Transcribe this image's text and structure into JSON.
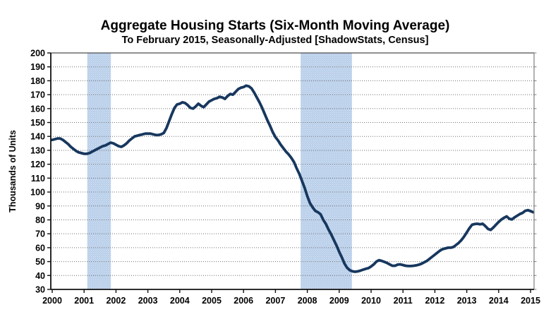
{
  "chart_data": {
    "type": "line",
    "title": "Aggregate Housing Starts (Six-Month Moving Average)",
    "subtitle": "To February 2015, Seasonally-Adjusted [ShadowStats, Census]",
    "xlabel": "",
    "ylabel": "Thousands of Units",
    "ylim": [
      30,
      200
    ],
    "ytick_step": 10,
    "xticks": [
      2000,
      2001,
      2002,
      2003,
      2004,
      2005,
      2006,
      2007,
      2008,
      2009,
      2010,
      2011,
      2012,
      2013,
      2014,
      2015
    ],
    "xlim": [
      2000,
      2015.1
    ],
    "grid": "horizontal dotted gray lines, on",
    "legend": "none",
    "background_color": "#FFFFFF",
    "line_color": "#17375E",
    "line_width": 3.8,
    "recession_bands": {
      "color": "#B7CDE9",
      "pattern": "light-blue dotted fill",
      "ranges_years": [
        [
          2001.1,
          2001.84
        ],
        [
          2007.79,
          2009.4
        ]
      ]
    },
    "series": [
      {
        "name": "Aggregate housing starts, six-month moving average (thousands of units, monthly)",
        "x_start": "2000-01",
        "x_end": "2015-02",
        "x_interval": "monthly",
        "values": [
          137.5,
          138,
          138.5,
          138.5,
          137.5,
          136,
          134.5,
          132.5,
          131,
          129.5,
          128.5,
          128,
          127.5,
          127.5,
          128,
          129,
          130,
          131,
          132,
          133,
          133.5,
          134.5,
          135.5,
          135,
          134,
          133,
          132.5,
          133.5,
          135,
          137,
          138.5,
          140,
          140.5,
          141,
          141.5,
          142,
          142,
          142,
          141.5,
          141,
          141,
          141.5,
          142.5,
          146,
          151,
          156,
          160.5,
          163,
          163.5,
          164.5,
          164,
          162.5,
          160.5,
          160,
          161.5,
          163.5,
          162,
          161,
          163,
          165,
          166,
          167,
          167.5,
          168.5,
          168,
          167,
          169,
          170.5,
          170,
          172,
          174,
          175,
          175.5,
          176.5,
          176,
          174.5,
          171.5,
          168,
          164.5,
          160.5,
          156,
          151.5,
          147.5,
          143,
          139.5,
          137,
          134,
          131.5,
          129,
          127,
          124.5,
          121.5,
          117,
          113,
          108,
          103,
          97,
          92,
          89,
          86.5,
          85.5,
          84,
          80,
          77,
          73,
          69.5,
          65.5,
          61.5,
          57,
          53,
          48.5,
          45.5,
          43.8,
          43,
          42.7,
          43,
          43.5,
          44.2,
          44.8,
          45.3,
          46.5,
          48,
          50,
          51,
          50.5,
          49.8,
          49,
          48,
          47,
          47,
          47.8,
          48,
          47.5,
          47,
          46.8,
          46.8,
          47,
          47.3,
          47.8,
          48.5,
          49.5,
          50.5,
          52,
          53.5,
          55,
          56.5,
          58,
          59,
          59.5,
          60,
          60,
          60.5,
          62,
          63.5,
          65.5,
          68,
          71,
          74,
          76.5,
          77,
          77.2,
          76.8,
          77.2,
          75.5,
          73.5,
          72.8,
          74.5,
          76.5,
          78.5,
          80.2,
          81.5,
          82.5,
          80.8,
          80.3,
          81.8,
          83,
          84.2,
          85,
          86.5,
          87,
          86.3,
          85.5
        ]
      }
    ]
  }
}
